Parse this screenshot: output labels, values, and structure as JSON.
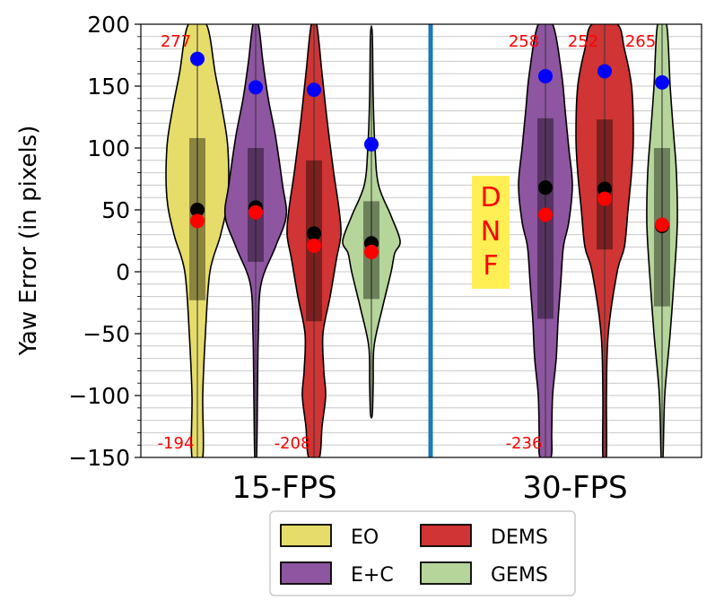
{
  "chart_data": {
    "type": "violin",
    "ylabel": "Yaw Error (in pixels)",
    "ylim": [
      -150,
      200
    ],
    "yticks": [
      -150,
      -100,
      -50,
      0,
      50,
      100,
      150,
      200
    ],
    "minor_gridlines": true,
    "groups": [
      {
        "label": "15-FPS",
        "methods": [
          {
            "name": "EO",
            "color": "#e6dc6a",
            "q1": -23,
            "q3": 108,
            "median": 50,
            "mean": 41,
            "max_point": 172,
            "extent_low": -150,
            "extent_high": 200,
            "top_annotation": "277",
            "bottom_annotation": "-194",
            "shape": [
              [
                -150,
                6
              ],
              [
                -100,
                6
              ],
              [
                -50,
                9
              ],
              [
                0,
                14
              ],
              [
                30,
                26
              ],
              [
                60,
                34
              ],
              [
                100,
                34
              ],
              [
                130,
                28
              ],
              [
                160,
                20
              ],
              [
                200,
                10
              ]
            ]
          },
          {
            "name": "E+C",
            "color": "#8e55a0",
            "q1": 8,
            "q3": 100,
            "median": 52,
            "mean": 48,
            "max_point": 149,
            "extent_low": -150,
            "extent_high": 200,
            "top_annotation": "",
            "bottom_annotation": "",
            "shape": [
              [
                -150,
                1
              ],
              [
                -100,
                2
              ],
              [
                -50,
                3
              ],
              [
                -10,
                6
              ],
              [
                20,
                22
              ],
              [
                45,
                34
              ],
              [
                70,
                30
              ],
              [
                110,
                22
              ],
              [
                140,
                14
              ],
              [
                170,
                8
              ],
              [
                200,
                3
              ]
            ]
          },
          {
            "name": "DEMS",
            "color": "#d03434",
            "q1": -40,
            "q3": 90,
            "median": 31,
            "mean": 21,
            "max_point": 147,
            "extent_low": -150,
            "extent_high": 200,
            "top_annotation": "",
            "bottom_annotation": "-208",
            "shape": [
              [
                -150,
                6
              ],
              [
                -125,
                9
              ],
              [
                -100,
                13
              ],
              [
                -80,
                11
              ],
              [
                -50,
                10
              ],
              [
                -20,
                18
              ],
              [
                10,
                25
              ],
              [
                30,
                30
              ],
              [
                50,
                28
              ],
              [
                80,
                22
              ],
              [
                120,
                15
              ],
              [
                160,
                9
              ],
              [
                200,
                3
              ]
            ]
          },
          {
            "name": "GEMS",
            "color": "#b6d59a",
            "q1": -22,
            "q3": 57,
            "median": 23,
            "mean": 16,
            "max_point": 103,
            "extent_low": -115,
            "extent_high": 192,
            "top_annotation": "",
            "bottom_annotation": "",
            "shape": [
              [
                -115,
                1
              ],
              [
                -90,
                2
              ],
              [
                -60,
                3
              ],
              [
                -30,
                12
              ],
              [
                0,
                22
              ],
              [
                15,
                26
              ],
              [
                25,
                32
              ],
              [
                45,
                22
              ],
              [
                70,
                8
              ],
              [
                100,
                4
              ],
              [
                140,
                2
              ],
              [
                192,
                1
              ]
            ]
          }
        ]
      },
      {
        "label": "30-FPS",
        "methods": [
          {
            "name": "EO",
            "dnf": true,
            "dnf_text": [
              "D",
              "N",
              "F"
            ],
            "color": "#ffef55"
          },
          {
            "name": "E+C",
            "color": "#8e55a0",
            "q1": -38,
            "q3": 124,
            "median": 68,
            "mean": 46,
            "max_point": 158,
            "extent_low": -150,
            "extent_high": 200,
            "top_annotation": "258",
            "bottom_annotation": "-236",
            "shape": [
              [
                -150,
                6
              ],
              [
                -130,
                7
              ],
              [
                -100,
                8
              ],
              [
                -70,
                12
              ],
              [
                -40,
                14
              ],
              [
                -10,
                17
              ],
              [
                20,
                20
              ],
              [
                40,
                26
              ],
              [
                70,
                30
              ],
              [
                100,
                26
              ],
              [
                130,
                22
              ],
              [
                160,
                18
              ],
              [
                200,
                8
              ]
            ]
          },
          {
            "name": "DEMS",
            "color": "#d03434",
            "q1": 18,
            "q3": 123,
            "median": 67,
            "mean": 59,
            "max_point": 162,
            "extent_low": -150,
            "extent_high": 200,
            "top_annotation": "252",
            "bottom_annotation": "",
            "shape": [
              [
                -150,
                2
              ],
              [
                -100,
                2
              ],
              [
                -50,
                4
              ],
              [
                0,
                14
              ],
              [
                20,
                22
              ],
              [
                50,
                26
              ],
              [
                80,
                30
              ],
              [
                110,
                32
              ],
              [
                150,
                30
              ],
              [
                180,
                22
              ],
              [
                200,
                14
              ]
            ]
          },
          {
            "name": "GEMS",
            "color": "#b6d59a",
            "q1": -28,
            "q3": 100,
            "median": 37,
            "mean": 38,
            "max_point": 153,
            "extent_low": -150,
            "extent_high": 200,
            "top_annotation": "265",
            "bottom_annotation": "",
            "shape": [
              [
                -150,
                1
              ],
              [
                -100,
                3
              ],
              [
                -50,
                9
              ],
              [
                0,
                14
              ],
              [
                40,
                17
              ],
              [
                80,
                16
              ],
              [
                110,
                13
              ],
              [
                150,
                9
              ],
              [
                200,
                5
              ]
            ]
          }
        ]
      }
    ],
    "legend": {
      "placement": "bottom-center",
      "items": [
        {
          "label": "EO",
          "color": "#e6dc6a"
        },
        {
          "label": "E+C",
          "color": "#8e55a0"
        },
        {
          "label": "DEMS",
          "color": "#d03434"
        },
        {
          "label": "GEMS",
          "color": "#b6d59a"
        }
      ]
    },
    "separator_color": "#1f77b4",
    "mean_color": "#ff0000",
    "median_color": "#000000",
    "max_color": "#0000ff"
  }
}
